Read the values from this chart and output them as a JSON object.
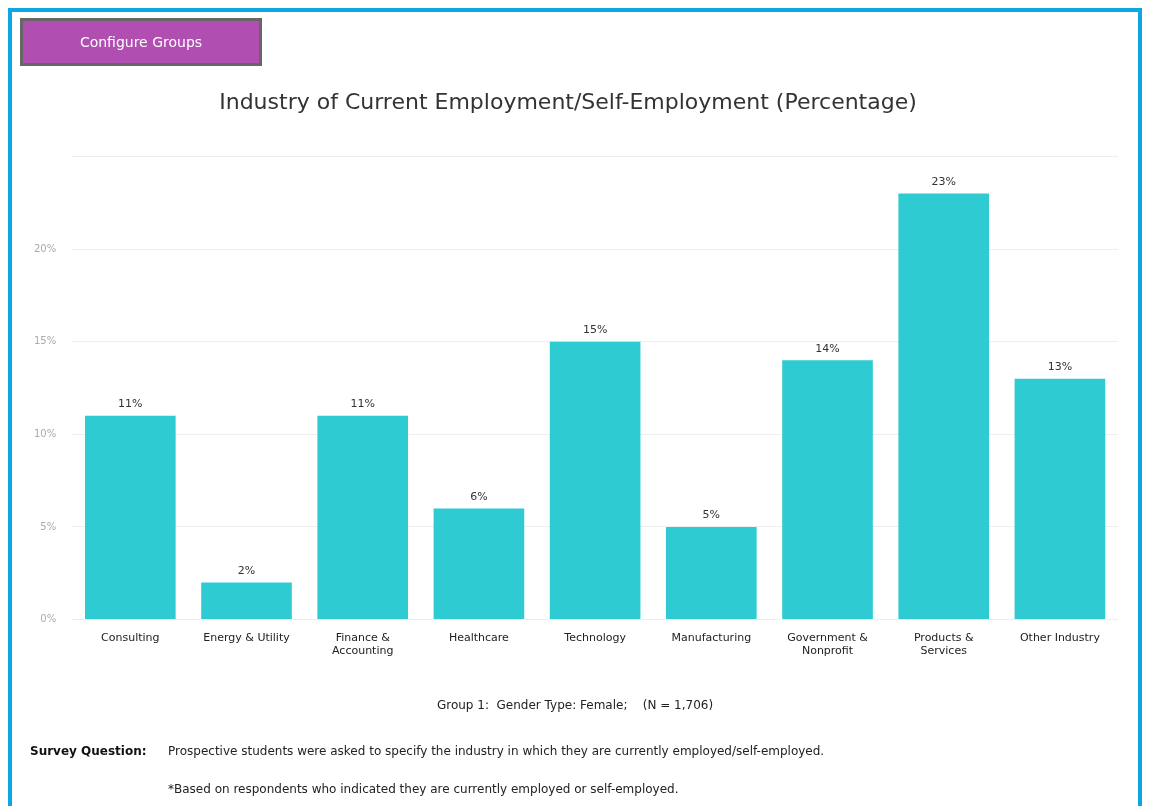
{
  "chart_data": {
    "type": "bar",
    "title": "Industry of Current Employment/Self-Employment (Percentage)",
    "categories": [
      "Consulting",
      "Energy & Utility",
      "Finance & Accounting",
      "Healthcare",
      "Technology",
      "Manufacturing",
      "Government & Nonprofit",
      "Products & Services",
      "Other Industry"
    ],
    "values": [
      11,
      2,
      11,
      6,
      15,
      5,
      14,
      23,
      13
    ],
    "value_labels": [
      "11%",
      "2%",
      "11%",
      "6%",
      "15%",
      "5%",
      "14%",
      "23%",
      "13%"
    ],
    "color": "#2ecbd2",
    "ylim": [
      0,
      25
    ],
    "yticks": [
      {
        "value": 0,
        "label": "0%"
      },
      {
        "value": 5,
        "label": "5%"
      },
      {
        "value": 10,
        "label": "10%"
      },
      {
        "value": 15,
        "label": "15%"
      },
      {
        "value": 20,
        "label": "20%"
      },
      {
        "value": 25,
        "label": null
      }
    ],
    "grid": "y",
    "legend": false,
    "annotations": [
      "Configure Groups",
      "Group 1:  Gender Type: Female;    (N = 1,706)",
      "Survey Question:",
      "Prospective students were asked to specify the industry in which they are currently employed/self-employed.",
      "*Based on respondents who indicated they are currently employed or self-employed."
    ]
  }
}
